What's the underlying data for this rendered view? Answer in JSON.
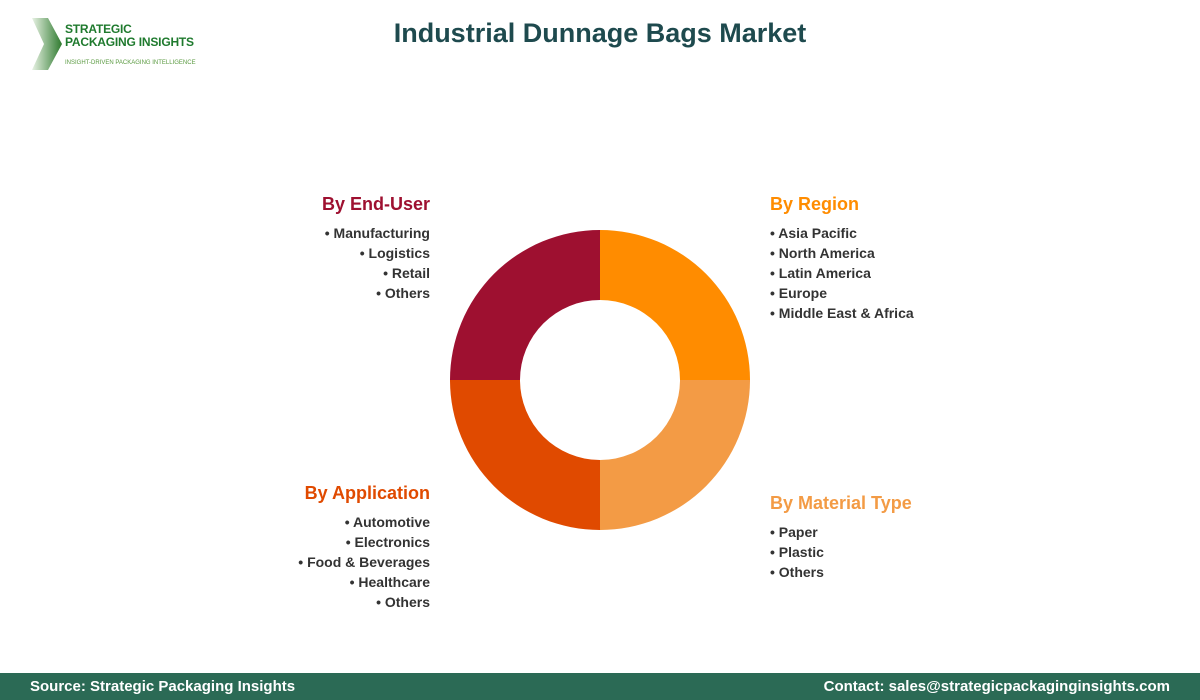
{
  "logo": {
    "line1": "STRATEGIC",
    "line2": "PACKAGING INSIGHTS",
    "tagline": "INSIGHT-DRIVEN PACKAGING INTELLIGENCE"
  },
  "title": "Industrial Dunnage Bags Market",
  "segments": [
    {
      "key": "region",
      "heading": "By Region",
      "color": "#FF8C00",
      "items": [
        "Asia Pacific",
        "North America",
        "Latin America",
        "Europe",
        "Middle East & Africa"
      ]
    },
    {
      "key": "material",
      "heading": "By Material Type",
      "color": "#F39B45",
      "items": [
        "Paper",
        "Plastic",
        "Others"
      ]
    },
    {
      "key": "application",
      "heading": "By Application",
      "color": "#E04A00",
      "items": [
        "Automotive",
        "Electronics",
        "Food & Beverages",
        "Healthcare",
        "Others"
      ]
    },
    {
      "key": "enduser",
      "heading": "By End-User",
      "color": "#9E1030",
      "items": [
        "Manufacturing",
        "Logistics",
        "Retail",
        "Others"
      ]
    }
  ],
  "footer": {
    "source": "Source: Strategic Packaging Insights",
    "contact": "Contact: sales@strategicpackaginginsights.com"
  }
}
